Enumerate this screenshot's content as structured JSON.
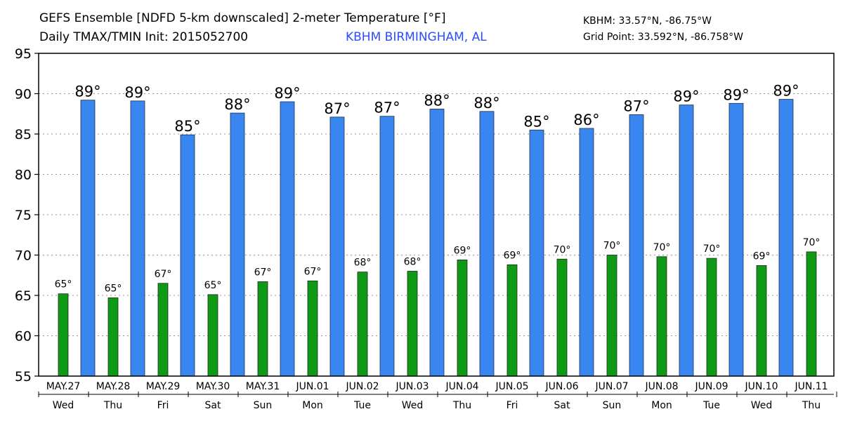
{
  "header": {
    "title_line1": "GEFS Ensemble [NDFD 5-km downscaled] 2-meter Temperature [°F]",
    "title_line2": "Daily TMAX/TMIN Init: 2015052700",
    "station": "KBHM BIRMINGHAM, AL",
    "station_coords": "KBHM: 33.57°N, -86.75°W",
    "grid_point": "Grid Point: 33.592°N, -86.758°W"
  },
  "chart_data": {
    "type": "bar",
    "ylim": [
      55,
      95
    ],
    "yticks": [
      55,
      60,
      65,
      70,
      75,
      80,
      85,
      90,
      95
    ],
    "grid": true,
    "dates": [
      "MAY.27",
      "MAY.28",
      "MAY.29",
      "MAY.30",
      "MAY.31",
      "JUN.01",
      "JUN.02",
      "JUN.03",
      "JUN.04",
      "JUN.05",
      "JUN.06",
      "JUN.07",
      "JUN.08",
      "JUN.09",
      "JUN.10",
      "JUN.11"
    ],
    "weekdays": [
      "Wed",
      "Thu",
      "Fri",
      "Sat",
      "Sun",
      "Mon",
      "Tue",
      "Wed",
      "Thu",
      "Fri",
      "Sat",
      "Sun",
      "Mon",
      "Tue",
      "Wed",
      "Thu"
    ],
    "tmin": {
      "color": "#0f9a16",
      "values": [
        65.2,
        64.7,
        66.5,
        65.1,
        66.7,
        66.8,
        67.9,
        68.0,
        69.4,
        68.8,
        69.5,
        70.0,
        69.8,
        69.6,
        68.7,
        70.4
      ],
      "labels": [
        "65°",
        "65°",
        "67°",
        "65°",
        "67°",
        "67°",
        "68°",
        "68°",
        "69°",
        "69°",
        "70°",
        "70°",
        "70°",
        "70°",
        "69°",
        "70°"
      ]
    },
    "tmax": {
      "color": "#3a86f0",
      "values": [
        89.2,
        89.1,
        84.9,
        87.6,
        89.0,
        87.1,
        87.2,
        88.1,
        87.8,
        85.5,
        85.7,
        87.4,
        88.6,
        88.8,
        89.3
      ],
      "labels": [
        "89°",
        "89°",
        "85°",
        "88°",
        "89°",
        "87°",
        "87°",
        "88°",
        "88°",
        "85°",
        "86°",
        "87°",
        "89°",
        "89°",
        "89°"
      ]
    }
  }
}
